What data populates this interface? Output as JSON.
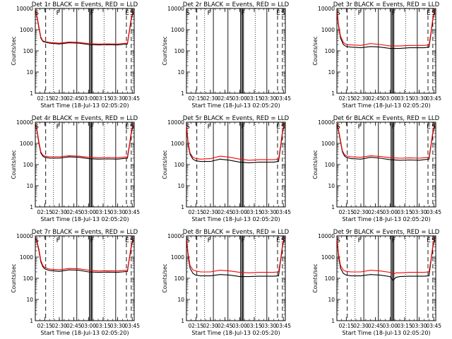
{
  "figure": {
    "background": "#ffffff",
    "event_color": "#000000",
    "lld_color": "#ff0000",
    "ylabel": "Counts/sec",
    "xlabel": "Start Time (18-Jul-13 02:05:20)",
    "x_ticks": [
      "02:15",
      "02:30",
      "02:45",
      "03:00",
      "03:15",
      "03:30",
      "03:45"
    ],
    "y_ticks": [
      "1",
      "10",
      "100",
      "1000",
      "10000"
    ],
    "y_scale": "log",
    "ylim": [
      1,
      10000
    ],
    "xlim_minutes_after_0200": [
      5.33,
      107
    ]
  },
  "chart_data": [
    {
      "type": "line",
      "title": "Det 1r BLACK = Events, RED = LLD",
      "x_minutes_after_0200": [
        5.33,
        7,
        9,
        11,
        13,
        15,
        20,
        30,
        40,
        50,
        60,
        70,
        80,
        90,
        95,
        100,
        102,
        104,
        106
      ],
      "series": [
        {
          "name": "Events",
          "values": [
            9000,
            4000,
            1200,
            400,
            280,
            260,
            230,
            210,
            240,
            230,
            200,
            190,
            195,
            190,
            200,
            210,
            800,
            3000,
            7000
          ]
        },
        {
          "name": "LLD",
          "values": [
            9000,
            4500,
            1400,
            450,
            300,
            280,
            250,
            230,
            260,
            250,
            220,
            210,
            215,
            210,
            220,
            230,
            900,
            3500,
            8000
          ]
        }
      ],
      "annotations": [
        {
          "text": "S",
          "x": 6
        },
        {
          "text": "F",
          "x": 28
        },
        {
          "text": "F",
          "x": 63
        },
        {
          "text": "E",
          "x": 99
        },
        {
          "text": "S",
          "x": 104
        }
      ],
      "solid_lines": [
        33,
        48,
        61,
        62,
        63,
        64,
        88
      ],
      "dashed_lines": [
        16,
        99,
        104
      ],
      "dotted_lines": [
        24,
        76
      ]
    },
    {
      "type": "line",
      "title": "Det 2r BLACK = Events, RED = LLD",
      "x_minutes_after_0200": [],
      "series": [
        {
          "name": "Events",
          "values": []
        },
        {
          "name": "LLD",
          "values": []
        }
      ],
      "annotations": [
        {
          "text": "S",
          "x": 6
        },
        {
          "text": "F",
          "x": 28
        },
        {
          "text": "F",
          "x": 63
        },
        {
          "text": "E",
          "x": 99
        },
        {
          "text": "S",
          "x": 104
        }
      ],
      "solid_lines": [
        33,
        48,
        61,
        62,
        63,
        64,
        88
      ],
      "dashed_lines": [
        16,
        99,
        104
      ],
      "dotted_lines": [
        24,
        76
      ]
    },
    {
      "type": "line",
      "title": "Det 3r BLACK = Events, RED = LLD",
      "x_minutes_after_0200": [
        5.33,
        7,
        9,
        12,
        15,
        20,
        30,
        40,
        50,
        60,
        70,
        80,
        90,
        95,
        100,
        102,
        104,
        106
      ],
      "series": [
        {
          "name": "Events",
          "values": [
            8000,
            1500,
            400,
            200,
            160,
            150,
            140,
            160,
            150,
            130,
            130,
            140,
            140,
            140,
            150,
            600,
            3000,
            8000
          ]
        },
        {
          "name": "LLD",
          "values": [
            8000,
            1800,
            500,
            250,
            200,
            190,
            180,
            220,
            200,
            170,
            170,
            180,
            180,
            180,
            190,
            700,
            3500,
            9000
          ]
        }
      ],
      "annotations": [
        {
          "text": "S",
          "x": 6
        },
        {
          "text": "F",
          "x": 28
        },
        {
          "text": "F",
          "x": 63
        },
        {
          "text": "E",
          "x": 99
        },
        {
          "text": "S",
          "x": 104
        }
      ],
      "solid_lines": [
        33,
        48,
        61,
        62,
        63,
        64,
        88
      ],
      "dashed_lines": [
        16,
        99,
        104
      ],
      "dotted_lines": [
        24,
        76
      ]
    },
    {
      "type": "line",
      "title": "Det 4r BLACK = Events, RED = LLD",
      "x_minutes_after_0200": [
        5.33,
        7,
        9,
        11,
        13,
        15,
        20,
        30,
        40,
        50,
        60,
        70,
        80,
        90,
        95,
        100,
        102,
        104,
        106
      ],
      "series": [
        {
          "name": "Events",
          "values": [
            9000,
            4000,
            1000,
            350,
            250,
            220,
            200,
            200,
            230,
            220,
            190,
            180,
            185,
            180,
            190,
            200,
            700,
            3000,
            7000
          ]
        },
        {
          "name": "LLD",
          "values": [
            9000,
            4500,
            1200,
            400,
            280,
            250,
            230,
            230,
            260,
            250,
            220,
            210,
            215,
            210,
            220,
            230,
            800,
            3500,
            8000
          ]
        }
      ],
      "annotations": [
        {
          "text": "S",
          "x": 6
        },
        {
          "text": "F",
          "x": 28
        },
        {
          "text": "F",
          "x": 63
        },
        {
          "text": "E",
          "x": 99
        },
        {
          "text": "S",
          "x": 104
        }
      ],
      "solid_lines": [
        33,
        48,
        61,
        62,
        63,
        64,
        88
      ],
      "dashed_lines": [
        16,
        99,
        104
      ],
      "dotted_lines": [
        24,
        76
      ]
    },
    {
      "type": "line",
      "title": "Det 5r BLACK = Events, RED = LLD",
      "x_minutes_after_0200": [
        5.33,
        7,
        9,
        12,
        15,
        20,
        30,
        40,
        50,
        60,
        70,
        80,
        90,
        95,
        100,
        102,
        104,
        106
      ],
      "series": [
        {
          "name": "Events",
          "values": [
            7000,
            1000,
            300,
            180,
            150,
            140,
            140,
            180,
            160,
            130,
            120,
            130,
            130,
            130,
            140,
            600,
            3000,
            8000
          ]
        },
        {
          "name": "LLD",
          "values": [
            7000,
            1200,
            350,
            220,
            190,
            180,
            190,
            250,
            220,
            180,
            160,
            170,
            170,
            170,
            180,
            700,
            3500,
            9000
          ]
        }
      ],
      "annotations": [
        {
          "text": "S",
          "x": 6
        },
        {
          "text": "F",
          "x": 28
        },
        {
          "text": "F",
          "x": 63
        },
        {
          "text": "E",
          "x": 99
        },
        {
          "text": "S",
          "x": 104
        }
      ],
      "solid_lines": [
        33,
        48,
        61,
        62,
        63,
        64,
        88
      ],
      "dashed_lines": [
        16,
        99,
        104
      ],
      "dotted_lines": [
        24,
        76
      ]
    },
    {
      "type": "line",
      "title": "Det 6r BLACK = Events, RED = LLD",
      "x_minutes_after_0200": [
        5.33,
        7,
        9,
        11,
        13,
        15,
        20,
        30,
        40,
        50,
        60,
        70,
        80,
        90,
        95,
        100,
        102,
        104,
        106
      ],
      "series": [
        {
          "name": "Events",
          "values": [
            9000,
            4000,
            1200,
            400,
            260,
            220,
            190,
            180,
            220,
            200,
            170,
            160,
            165,
            160,
            170,
            180,
            700,
            3000,
            7000
          ]
        },
        {
          "name": "LLD",
          "values": [
            9000,
            4500,
            1400,
            450,
            300,
            260,
            230,
            220,
            260,
            240,
            210,
            200,
            205,
            200,
            210,
            220,
            800,
            3500,
            8000
          ]
        }
      ],
      "annotations": [
        {
          "text": "S",
          "x": 6
        },
        {
          "text": "F",
          "x": 28
        },
        {
          "text": "F",
          "x": 63
        },
        {
          "text": "E",
          "x": 99
        },
        {
          "text": "S",
          "x": 104
        }
      ],
      "solid_lines": [
        33,
        48,
        61,
        62,
        63,
        64,
        88
      ],
      "dashed_lines": [
        16,
        99,
        104
      ],
      "dotted_lines": [
        24,
        76
      ]
    },
    {
      "type": "line",
      "title": "Det 7r BLACK = Events, RED = LLD",
      "x_minutes_after_0200": [
        5.33,
        7,
        9,
        11,
        13,
        15,
        20,
        30,
        40,
        50,
        60,
        70,
        80,
        90,
        95,
        100,
        102,
        104,
        106
      ],
      "series": [
        {
          "name": "Events",
          "values": [
            9000,
            5000,
            2000,
            600,
            350,
            280,
            230,
            210,
            250,
            240,
            200,
            190,
            195,
            190,
            200,
            210,
            800,
            3000,
            7000
          ]
        },
        {
          "name": "LLD",
          "values": [
            9000,
            5500,
            2400,
            700,
            400,
            320,
            270,
            250,
            290,
            280,
            240,
            220,
            225,
            220,
            230,
            240,
            900,
            3500,
            8000
          ]
        }
      ],
      "annotations": [
        {
          "text": "S",
          "x": 6
        },
        {
          "text": "F",
          "x": 28
        },
        {
          "text": "F",
          "x": 63
        },
        {
          "text": "E",
          "x": 99
        },
        {
          "text": "S",
          "x": 104
        }
      ],
      "solid_lines": [
        33,
        48,
        61,
        62,
        63,
        64,
        88
      ],
      "dashed_lines": [
        16,
        99,
        104
      ],
      "dotted_lines": [
        24,
        76
      ]
    },
    {
      "type": "line",
      "title": "Det 8r BLACK = Events, RED = LLD",
      "x_minutes_after_0200": [
        5.33,
        7,
        9,
        12,
        15,
        20,
        30,
        40,
        50,
        60,
        70,
        80,
        90,
        95,
        100,
        102,
        104,
        106
      ],
      "series": [
        {
          "name": "Events",
          "values": [
            8000,
            1200,
            300,
            170,
            140,
            130,
            130,
            150,
            140,
            120,
            120,
            125,
            125,
            125,
            130,
            600,
            3000,
            8000
          ]
        },
        {
          "name": "LLD",
          "values": [
            8000,
            1500,
            400,
            250,
            220,
            200,
            200,
            240,
            220,
            190,
            180,
            190,
            190,
            190,
            200,
            700,
            3500,
            9000
          ]
        }
      ],
      "annotations": [
        {
          "text": "S",
          "x": 6
        },
        {
          "text": "F",
          "x": 28
        },
        {
          "text": "F",
          "x": 63
        },
        {
          "text": "E",
          "x": 99
        },
        {
          "text": "S",
          "x": 104
        }
      ],
      "solid_lines": [
        33,
        48,
        61,
        62,
        63,
        64,
        88
      ],
      "dashed_lines": [
        16,
        99,
        104
      ],
      "dotted_lines": [
        24,
        76
      ]
    },
    {
      "type": "line",
      "title": "Det 9r BLACK = Events, RED = LLD",
      "x_minutes_after_0200": [
        5.33,
        7,
        9,
        12,
        15,
        20,
        30,
        40,
        50,
        60,
        63,
        66,
        70,
        80,
        90,
        95,
        100,
        102,
        104,
        106
      ],
      "series": [
        {
          "name": "Events",
          "values": [
            8000,
            1200,
            300,
            170,
            140,
            130,
            130,
            150,
            140,
            120,
            80,
            110,
            120,
            125,
            125,
            125,
            130,
            600,
            3000,
            8000
          ]
        },
        {
          "name": "LLD",
          "values": [
            8000,
            1500,
            400,
            240,
            210,
            200,
            200,
            240,
            220,
            190,
            150,
            180,
            180,
            190,
            190,
            190,
            200,
            700,
            3500,
            9000
          ]
        }
      ],
      "annotations": [
        {
          "text": "S",
          "x": 6
        },
        {
          "text": "F",
          "x": 28
        },
        {
          "text": "F",
          "x": 63
        },
        {
          "text": "E",
          "x": 99
        },
        {
          "text": "S",
          "x": 104
        }
      ],
      "solid_lines": [
        33,
        48,
        61,
        62,
        63,
        64,
        88
      ],
      "dashed_lines": [
        16,
        99,
        104
      ],
      "dotted_lines": [
        24,
        76
      ]
    }
  ]
}
